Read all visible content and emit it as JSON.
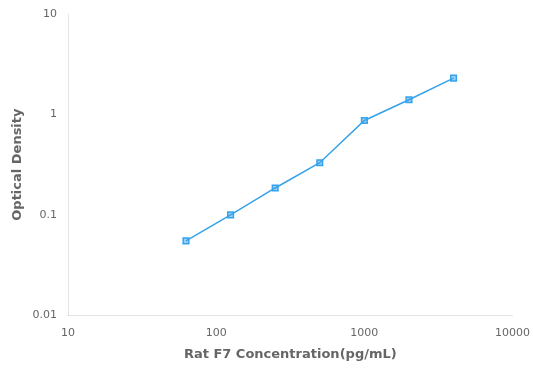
{
  "chart_data": {
    "type": "line",
    "x": [
      62.5,
      125,
      250,
      500,
      1000,
      2000,
      4000
    ],
    "values": [
      0.055,
      0.1,
      0.185,
      0.33,
      0.87,
      1.4,
      2.3
    ],
    "xlabel": "Rat F7 Concentration(pg/mL)",
    "ylabel": "Optical Density",
    "xlim": [
      10,
      10000
    ],
    "ylim": [
      0.01,
      10
    ],
    "xticks": [
      10,
      100,
      1000,
      10000
    ],
    "yticks": [
      0.01,
      0.1,
      1,
      10
    ],
    "log": true,
    "grid": false,
    "marker": "square"
  }
}
